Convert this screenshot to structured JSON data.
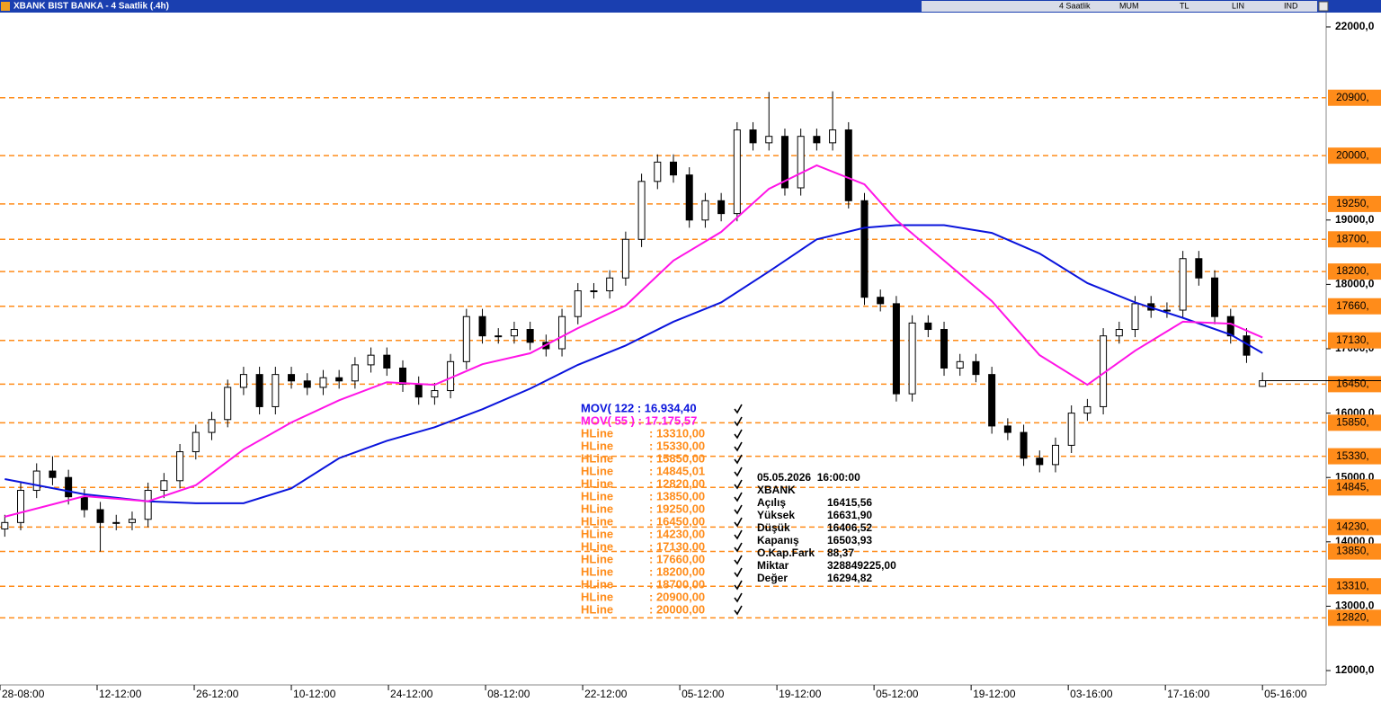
{
  "toolbar": {
    "title": "XBANK BIST BANKA - 4 Saatlik (.4h)",
    "items": [
      "4 Saatlik",
      "MUM",
      "TL",
      "LIN",
      "IND"
    ]
  },
  "chart_data": {
    "type": "candlestick",
    "ylim": [
      11777,
      22223
    ],
    "yticks": [
      {
        "value": 22000,
        "label": "22000,0"
      },
      {
        "value": 19000,
        "label": "19000,0"
      },
      {
        "value": 18000,
        "label": "18000,0"
      },
      {
        "value": 17000,
        "label": "17000,0"
      },
      {
        "value": 16000,
        "label": "16000,0"
      },
      {
        "value": 15000,
        "label": "15000,0"
      },
      {
        "value": 14000,
        "label": "14000,0"
      },
      {
        "value": 13000,
        "label": "13000,0"
      },
      {
        "value": 12000,
        "label": "12000,0"
      }
    ],
    "xlim": [
      -0.3,
      83
    ],
    "xticks": [
      {
        "value": -0.3,
        "label": "28-08:00"
      },
      {
        "value": 5.8,
        "label": "12-12:00"
      },
      {
        "value": 11.9,
        "label": "26-12:00"
      },
      {
        "value": 18,
        "label": "10-12:00"
      },
      {
        "value": 24.1,
        "label": "24-12:00"
      },
      {
        "value": 30.2,
        "label": "08-12:00"
      },
      {
        "value": 36.3,
        "label": "22-12:00"
      },
      {
        "value": 42.4,
        "label": "05-12:00"
      },
      {
        "value": 48.5,
        "label": "19-12:00"
      },
      {
        "value": 54.6,
        "label": "05-12:00"
      },
      {
        "value": 60.7,
        "label": "19-12:00"
      },
      {
        "value": 66.8,
        "label": "03-16:00"
      },
      {
        "value": 72.9,
        "label": "17-16:00"
      },
      {
        "value": 79,
        "label": "05-16:00"
      }
    ],
    "up_color": "#ffffff",
    "down_color": "#000000",
    "ohlc": {
      "open": [
        14200,
        14300,
        14800,
        15100,
        15000,
        14700,
        14500,
        14300,
        14300,
        14350,
        14800,
        14950,
        15400,
        15700,
        15900,
        16400,
        16600,
        16100,
        16600,
        16500,
        16400,
        16550,
        16500,
        16750,
        16900,
        16700,
        16450,
        16250,
        16350,
        16800,
        17500,
        17200,
        17200,
        17300,
        17100,
        17000,
        17500,
        17900,
        17900,
        18100,
        18700,
        19600,
        19900,
        19700,
        19000,
        19300,
        19100,
        20400,
        20200,
        20300,
        19500,
        20300,
        20200,
        20400,
        19300,
        17800,
        17700,
        16300,
        17400,
        17300,
        16700,
        16800,
        16600,
        15800,
        15700,
        15300,
        15200,
        15500,
        16000,
        16100,
        17200,
        17300,
        17700,
        17600,
        17600,
        18400,
        18100,
        17500,
        17200,
        16415.56
      ],
      "high": [
        14420,
        14920,
        15220,
        15330,
        15120,
        14820,
        14620,
        14420,
        14470,
        14920,
        15070,
        15520,
        15820,
        16020,
        16520,
        16720,
        16720,
        16720,
        16720,
        16620,
        16670,
        16670,
        16870,
        17020,
        17020,
        16820,
        16570,
        16470,
        16920,
        17620,
        17620,
        17320,
        17420,
        17420,
        17220,
        17620,
        18020,
        18020,
        18220,
        18820,
        19720,
        20020,
        20020,
        19820,
        19420,
        19420,
        20520,
        20520,
        20990,
        20420,
        20420,
        20420,
        21000,
        20520,
        19420,
        17920,
        17820,
        17520,
        17520,
        17420,
        16920,
        16920,
        16720,
        15920,
        15820,
        15420,
        15620,
        16120,
        16220,
        17320,
        17420,
        17820,
        17820,
        17720,
        18520,
        18520,
        18220,
        17620,
        17320,
        16631.9
      ],
      "low": [
        14080,
        14180,
        14680,
        14880,
        14580,
        14380,
        13850,
        14180,
        14180,
        14230,
        14680,
        14830,
        15280,
        15580,
        15780,
        16280,
        15980,
        15980,
        16380,
        16280,
        16280,
        16380,
        16380,
        16630,
        16580,
        16330,
        16130,
        16130,
        16230,
        16680,
        17080,
        17080,
        17080,
        16980,
        16880,
        16880,
        17380,
        17780,
        17780,
        17980,
        18580,
        19480,
        19580,
        18880,
        18880,
        18980,
        18980,
        20080,
        20080,
        19380,
        19380,
        20080,
        20080,
        19180,
        17680,
        17580,
        16180,
        16180,
        17180,
        16580,
        16580,
        16480,
        15680,
        15580,
        15180,
        15080,
        15080,
        15380,
        15880,
        15980,
        17080,
        17180,
        17480,
        17480,
        17480,
        17980,
        17380,
        17080,
        16780,
        16406.52
      ],
      "close": [
        14300,
        14800,
        15100,
        15000,
        14700,
        14500,
        14300,
        14300,
        14350,
        14800,
        14950,
        15400,
        15700,
        15900,
        16400,
        16600,
        16100,
        16600,
        16500,
        16400,
        16550,
        16500,
        16750,
        16900,
        16700,
        16450,
        16250,
        16350,
        16800,
        17500,
        17200,
        17200,
        17300,
        17100,
        17000,
        17500,
        17900,
        17900,
        18100,
        18700,
        19600,
        19900,
        19700,
        19000,
        19300,
        19100,
        20400,
        20200,
        20300,
        19500,
        20300,
        20200,
        20400,
        19300,
        17800,
        17700,
        16300,
        17400,
        17300,
        16700,
        16800,
        16600,
        15800,
        15700,
        15300,
        15200,
        15500,
        16000,
        16100,
        17200,
        17300,
        17700,
        17600,
        17600,
        18400,
        18100,
        17500,
        17200,
        16900,
        16503.93
      ]
    },
    "lines": [
      {
        "color": "#0a14dc",
        "x": [
          0,
          5,
          9,
          12,
          15,
          18,
          21,
          24,
          27,
          30,
          33,
          36,
          39,
          42,
          45,
          48,
          51,
          54,
          56,
          59,
          62,
          65,
          68,
          71,
          74,
          77,
          79
        ],
        "values": [
          14975,
          14740,
          14630,
          14600,
          14600,
          14830,
          15300,
          15570,
          15780,
          16060,
          16380,
          16750,
          17050,
          17420,
          17720,
          18200,
          18700,
          18880,
          18920,
          18920,
          18800,
          18480,
          18020,
          17720,
          17480,
          17220,
          16934.4
        ]
      },
      {
        "color": "#ff14e6",
        "x": [
          0,
          5,
          9,
          12,
          15,
          18,
          21,
          24,
          27,
          30,
          33,
          36,
          39,
          42,
          45,
          48,
          51,
          54,
          56,
          59,
          62,
          65,
          68,
          71,
          74,
          77,
          79
        ],
        "values": [
          14390,
          14710,
          14630,
          14880,
          15435,
          15855,
          16200,
          16480,
          16440,
          16760,
          16930,
          17320,
          17670,
          18370,
          18815,
          19485,
          19850,
          19555,
          19000,
          18370,
          17740,
          16900,
          16440,
          16970,
          17420,
          17390,
          17175.57
        ]
      }
    ],
    "hline_color": "#ff8c1a",
    "hlines": [
      {
        "value": 20900,
        "label": "20900,"
      },
      {
        "value": 20000,
        "label": "20000,"
      },
      {
        "value": 19250,
        "label": "19250,"
      },
      {
        "value": 18700,
        "label": "18700,"
      },
      {
        "value": 18200,
        "label": "18200,"
      },
      {
        "value": 17660,
        "label": "17660,"
      },
      {
        "value": 17130,
        "label": "17130,"
      },
      {
        "value": 16450,
        "label": "16450,"
      },
      {
        "value": 15850,
        "label": "15850,"
      },
      {
        "value": 15330,
        "label": "15330,"
      },
      {
        "value": 14845,
        "label": "14845,"
      },
      {
        "value": 14230,
        "label": "14230,"
      },
      {
        "value": 13850,
        "label": "13850,"
      },
      {
        "value": 13310,
        "label": "13310,"
      },
      {
        "value": 12820,
        "label": "12820,"
      }
    ],
    "legend": [
      {
        "name": "MOV( 122 : 16.934,40",
        "color": "#0a14dc"
      },
      {
        "name": "MOV( 55 ) : 17.175,57",
        "color": "#ff14e6"
      },
      {
        "name": "HLine",
        "value": ": 13310,00",
        "color": "#ff8c1a"
      },
      {
        "name": "HLine",
        "value": ": 15330,00",
        "color": "#ff8c1a"
      },
      {
        "name": "HLine",
        "value": ": 15850,00",
        "color": "#ff8c1a"
      },
      {
        "name": "HLine",
        "value": ": 14845,01",
        "color": "#ff8c1a"
      },
      {
        "name": "HLine",
        "value": ": 12820,00",
        "color": "#ff8c1a"
      },
      {
        "name": "HLine",
        "value": ": 13850,00",
        "color": "#ff8c1a"
      },
      {
        "name": "HLine",
        "value": ": 19250,00",
        "color": "#ff8c1a"
      },
      {
        "name": "HLine",
        "value": ": 16450,00",
        "color": "#ff8c1a"
      },
      {
        "name": "HLine",
        "value": ": 14230,00",
        "color": "#ff8c1a"
      },
      {
        "name": "HLine",
        "value": ": 17130,00",
        "color": "#ff8c1a"
      },
      {
        "name": "HLine",
        "value": ": 17660,00",
        "color": "#ff8c1a"
      },
      {
        "name": "HLine",
        "value": ": 18200,00",
        "color": "#ff8c1a"
      },
      {
        "name": "HLine",
        "value": ": 18700,00",
        "color": "#ff8c1a"
      },
      {
        "name": "HLine",
        "value": ": 20900,00",
        "color": "#ff8c1a"
      },
      {
        "name": "HLine",
        "value": ": 20000,00",
        "color": "#ff8c1a"
      }
    ]
  },
  "info": {
    "datetime": "05.05.2026  16:00:00",
    "symbol": "XBANK",
    "rows": [
      [
        "Açılış",
        "16415,56"
      ],
      [
        "Yüksek",
        "16631,90"
      ],
      [
        "Düşük",
        "16406,52"
      ],
      [
        "Kapanış",
        "16503,93"
      ],
      [
        "O.Kap.Fark",
        "88,37"
      ],
      [
        "Miktar",
        "328849225,00"
      ],
      [
        "Değer",
        "16294,82"
      ]
    ]
  }
}
